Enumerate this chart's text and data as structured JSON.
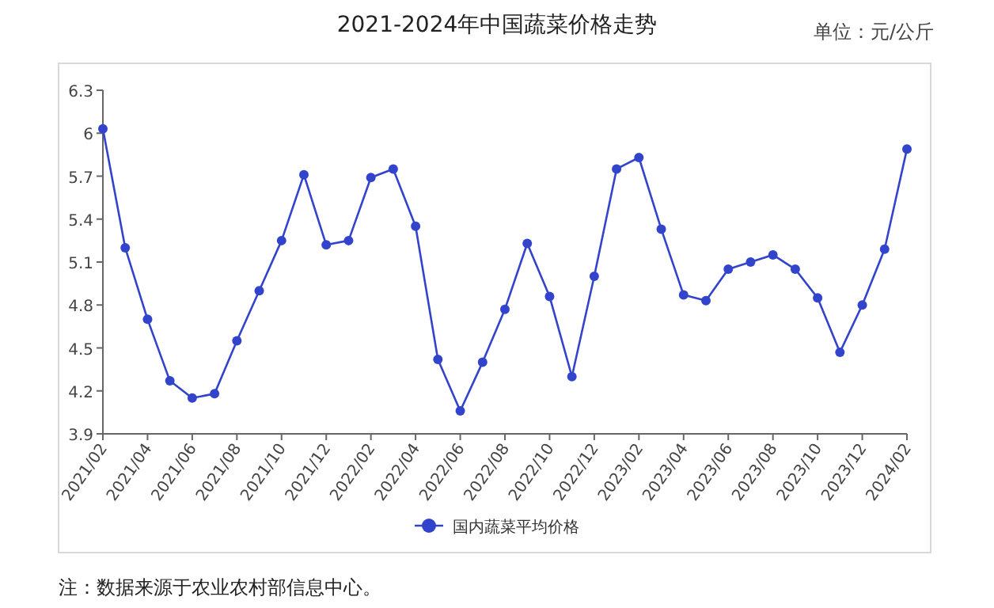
{
  "chart_data": {
    "type": "line",
    "title": "2021-2024年中国蔬菜价格走势",
    "annotations": [
      "单位：元/公斤",
      "注：数据来源于农业农村部信息中心。"
    ],
    "x": [
      "2021-02",
      "2021-03",
      "2021-04",
      "2021-05",
      "2021-06",
      "2021-07",
      "2021-08",
      "2021-09",
      "2021-10",
      "2021-11",
      "2021-12",
      "2022-01",
      "2022-02",
      "2022-03",
      "2022-04",
      "2022-05",
      "2022-06",
      "2022-07",
      "2022-08",
      "2022-09",
      "2022-10",
      "2022-11",
      "2022-12",
      "2023-01",
      "2023-02",
      "2023-03",
      "2023-04",
      "2023-05",
      "2023-06",
      "2023-07",
      "2023-08",
      "2023-09",
      "2023-10",
      "2023-11",
      "2023-12",
      "2024-01",
      "2024-02"
    ],
    "series": [
      {
        "name": "国内蔬菜平均价格",
        "color": "#3344cc",
        "values": [
          6.03,
          5.2,
          4.7,
          4.27,
          4.15,
          4.18,
          4.55,
          4.9,
          5.25,
          5.71,
          5.22,
          5.25,
          5.69,
          5.75,
          5.35,
          4.42,
          4.06,
          4.4,
          4.77,
          5.23,
          4.86,
          4.3,
          5.0,
          5.75,
          5.83,
          5.33,
          4.87,
          4.83,
          5.05,
          5.1,
          5.15,
          5.05,
          4.85,
          4.47,
          4.8,
          5.19,
          5.89
        ]
      }
    ],
    "xlim": [
      "2021-02",
      "2024-02"
    ],
    "xticks": [
      {
        "value": "2021-02",
        "label": "2021/02"
      },
      {
        "value": "2021-04",
        "label": "2021/04"
      },
      {
        "value": "2021-06",
        "label": "2021/06"
      },
      {
        "value": "2021-08",
        "label": "2021/08"
      },
      {
        "value": "2021-10",
        "label": "2021/10"
      },
      {
        "value": "2021-12",
        "label": "2021/12"
      },
      {
        "value": "2022-02",
        "label": "2022/02"
      },
      {
        "value": "2022-04",
        "label": "2022/04"
      },
      {
        "value": "2022-06",
        "label": "2022/06"
      },
      {
        "value": "2022-08",
        "label": "2022/08"
      },
      {
        "value": "2022-10",
        "label": "2022/10"
      },
      {
        "value": "2022-12",
        "label": "2022/12"
      },
      {
        "value": "2023-02",
        "label": "2023/02"
      },
      {
        "value": "2023-04",
        "label": "2023/04"
      },
      {
        "value": "2023-06",
        "label": "2023/06"
      },
      {
        "value": "2023-08",
        "label": "2023/08"
      },
      {
        "value": "2023-10",
        "label": "2023/10"
      },
      {
        "value": "2023-12",
        "label": "2023/12"
      },
      {
        "value": "2024-02",
        "label": "2024/02"
      }
    ],
    "ylim": [
      3.9,
      6.3
    ],
    "yticks": [
      3.9,
      4.2,
      4.5,
      4.8,
      5.1,
      5.4,
      5.7,
      6,
      6.3
    ],
    "marker": "circle",
    "line_style": "solid",
    "legend": "bottom",
    "grid": false
  }
}
